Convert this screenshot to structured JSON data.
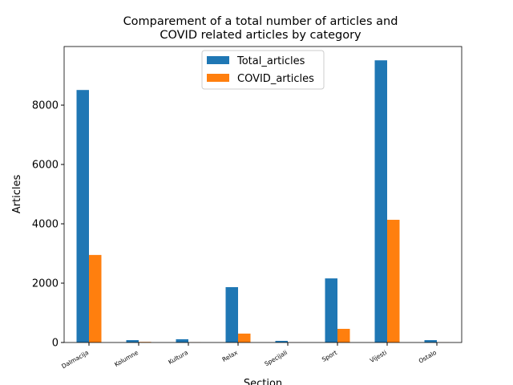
{
  "chart_data": {
    "type": "bar",
    "title": "Comparement of a total number of articles and\nCOVID related articles by category",
    "xlabel": "Section",
    "ylabel": "Articles",
    "categories": [
      "Dalmacija",
      "Kolumne",
      "Kultura",
      "Relax",
      "Specijali",
      "Sport",
      "Vijesti",
      "Ostalo"
    ],
    "series": [
      {
        "name": "Total_articles",
        "color": "#1f77b4",
        "values": [
          8510,
          80,
          110,
          1865,
          55,
          2160,
          9510,
          80
        ]
      },
      {
        "name": "COVID_articles",
        "color": "#ff7f0e",
        "values": [
          2950,
          20,
          5,
          300,
          2,
          460,
          4135,
          3
        ]
      }
    ],
    "ylim": [
      0,
      9975
    ],
    "yticks": [
      0,
      2000,
      4000,
      6000,
      8000
    ],
    "legend": "upper center"
  }
}
